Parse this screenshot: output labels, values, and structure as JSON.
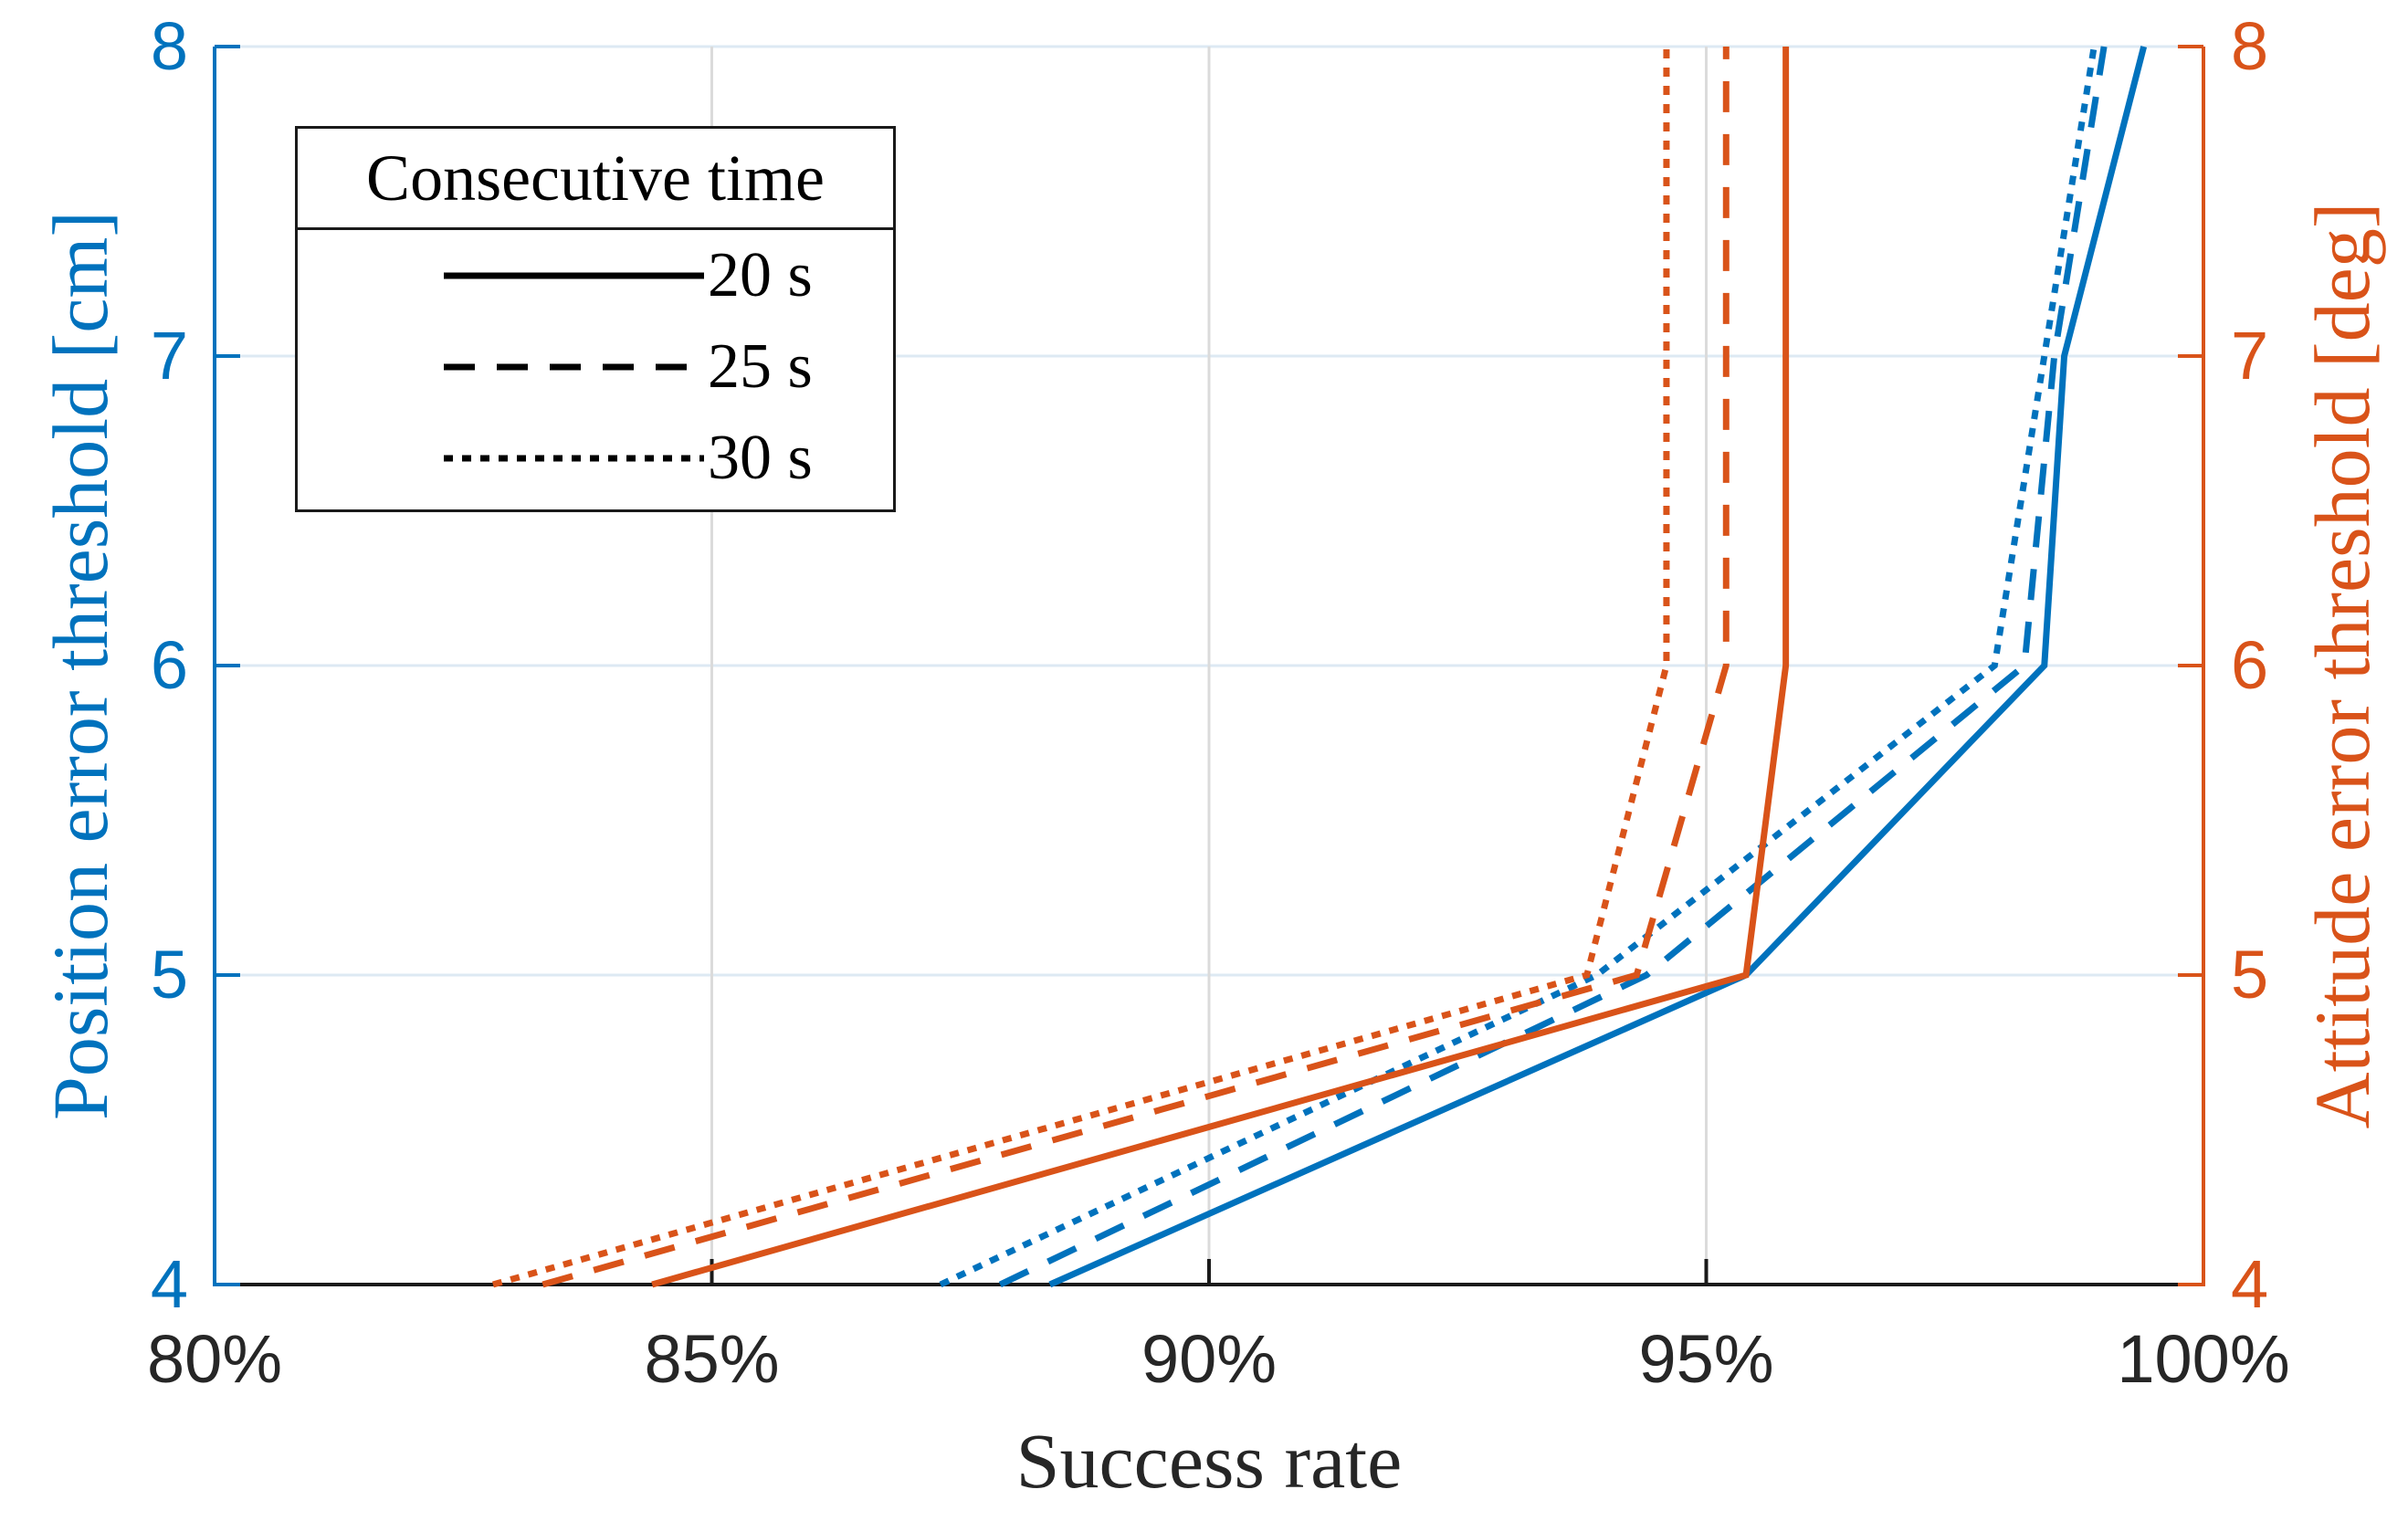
{
  "chart_data": {
    "type": "line",
    "title": "",
    "xlabel": "Success rate",
    "ylabel_left": "Position error threshold [cm]",
    "ylabel_right": "Attitude error threshold [deg]",
    "x_range": [
      80,
      100
    ],
    "y_range": [
      4,
      8
    ],
    "x_ticks": [
      {
        "value": 80,
        "label": "80%"
      },
      {
        "value": 85,
        "label": "85%"
      },
      {
        "value": 90,
        "label": "90%"
      },
      {
        "value": 95,
        "label": "95%"
      },
      {
        "value": 100,
        "label": "100%"
      }
    ],
    "y_ticks_left": [
      {
        "value": 4,
        "label": "4"
      },
      {
        "value": 5,
        "label": "5"
      },
      {
        "value": 6,
        "label": "6"
      },
      {
        "value": 7,
        "label": "7"
      },
      {
        "value": 8,
        "label": "8"
      }
    ],
    "y_ticks_right": [
      {
        "value": 4,
        "label": "4"
      },
      {
        "value": 5,
        "label": "5"
      },
      {
        "value": 6,
        "label": "6"
      },
      {
        "value": 7,
        "label": "7"
      },
      {
        "value": 8,
        "label": "8"
      }
    ],
    "grid": {
      "horizontal": [
        5,
        6,
        7,
        8
      ],
      "vertical": [
        85,
        90,
        95
      ]
    },
    "legend": {
      "title": "Consecutive time",
      "position": "top-left",
      "entries": [
        {
          "label": "20 s",
          "style": "solid"
        },
        {
          "label": "25 s",
          "style": "dashed"
        },
        {
          "label": "30 s",
          "style": "dotted"
        }
      ]
    },
    "thresholds": [
      4,
      5,
      6,
      7,
      8
    ],
    "series": [
      {
        "name": "Position error threshold, 20 s",
        "axis": "left",
        "style": "solid",
        "success_rate_pct": [
          88.4,
          95.4,
          98.4,
          98.6,
          99.4
        ]
      },
      {
        "name": "Position error threshold, 25 s",
        "axis": "left",
        "style": "dashed",
        "success_rate_pct": [
          87.9,
          94.4,
          98.2,
          98.5,
          99.0
        ]
      },
      {
        "name": "Position error threshold, 30 s",
        "axis": "left",
        "style": "dotted",
        "success_rate_pct": [
          87.3,
          93.9,
          97.9,
          98.4,
          98.9
        ]
      },
      {
        "name": "Attitude error threshold, 20 s",
        "axis": "right",
        "style": "solid",
        "success_rate_pct": [
          84.4,
          95.4,
          95.8,
          95.8,
          95.8
        ]
      },
      {
        "name": "Attitude error threshold, 25 s",
        "axis": "right",
        "style": "dashed",
        "success_rate_pct": [
          83.3,
          94.3,
          95.2,
          95.2,
          95.2
        ]
      },
      {
        "name": "Attitude error threshold, 30 s",
        "axis": "right",
        "style": "dotted",
        "success_rate_pct": [
          82.8,
          93.8,
          94.6,
          94.6,
          94.6
        ]
      }
    ],
    "colors": {
      "left_axis": "#0072BD",
      "right_axis": "#D95319",
      "x_axis": "#1a1a1a",
      "grid_horizontal": "#dde9f3",
      "grid_vertical": "#dbdbdb",
      "legend_line": "#000000"
    }
  }
}
